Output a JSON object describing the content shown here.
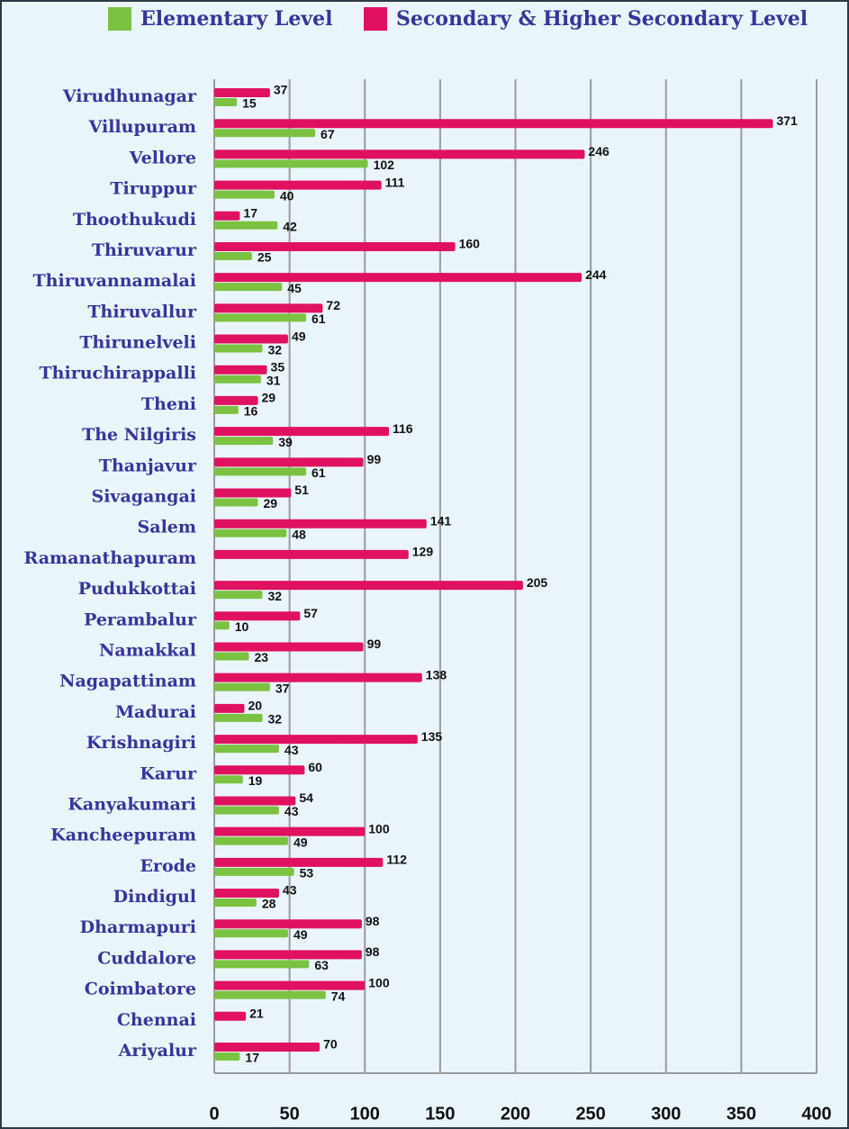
{
  "chart_data": {
    "type": "hbar",
    "categories": [
      "Virudhunagar",
      "Villupuram",
      "Vellore",
      "Tiruppur",
      "Thoothukudi",
      "Thiruvarur",
      "Thiruvannamalai",
      "Thiruvallur",
      "Thirunelveli",
      "Thiruchirappalli",
      "Theni",
      "The Nilgiris",
      "Thanjavur",
      "Sivagangai",
      "Salem",
      "Ramanathapuram",
      "Pudukkottai",
      "Perambalur",
      "Namakkal",
      "Nagapattinam",
      "Madurai",
      "Krishnagiri",
      "Karur",
      "Kanyakumari",
      "Kancheepuram",
      "Erode",
      "Dindigul",
      "Dharmapuri",
      "Cuddalore",
      "Coimbatore",
      "Chennai",
      "Ariyalur"
    ],
    "series": [
      {
        "name": "Elementary Level",
        "color": "#7cc242",
        "values": [
          15,
          67,
          102,
          40,
          42,
          25,
          45,
          61,
          32,
          31,
          16,
          39,
          61,
          29,
          48,
          null,
          32,
          10,
          23,
          37,
          32,
          43,
          19,
          43,
          49,
          53,
          28,
          49,
          63,
          74,
          null,
          17
        ]
      },
      {
        "name": "Secondary & Higher Secondary Level",
        "color": "#e0115f",
        "values": [
          37,
          371,
          246,
          111,
          17,
          160,
          244,
          72,
          49,
          35,
          29,
          116,
          99,
          51,
          141,
          129,
          205,
          57,
          99,
          138,
          20,
          135,
          60,
          54,
          100,
          112,
          43,
          98,
          98,
          100,
          21,
          70
        ]
      }
    ],
    "xlim": [
      0,
      400
    ],
    "xticks": [
      0,
      50,
      100,
      150,
      200,
      250,
      300,
      350,
      400
    ],
    "grid": true
  }
}
